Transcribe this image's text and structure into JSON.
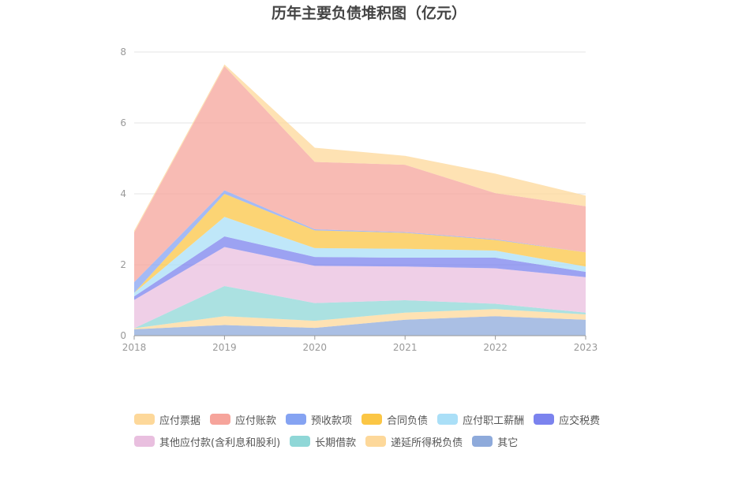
{
  "title": "历年主要负债堆积图（亿元）",
  "chart_data": {
    "type": "area",
    "stacked": true,
    "title": "历年主要负债堆积图（亿元）",
    "x": [
      "2018",
      "2019",
      "2020",
      "2021",
      "2022",
      "2023"
    ],
    "ylim": [
      0,
      8
    ],
    "yticks": [
      "0",
      "2",
      "4",
      "6",
      "8"
    ],
    "grid": true,
    "legend_position": "bottom",
    "series": [
      {
        "name": "其它",
        "color": "#8eaadb",
        "values": [
          0.18,
          0.3,
          0.22,
          0.45,
          0.55,
          0.45
        ]
      },
      {
        "name": "递延所得税负债",
        "color": "#fdd89a",
        "values": [
          0.03,
          0.25,
          0.2,
          0.2,
          0.2,
          0.15
        ]
      },
      {
        "name": "长期借款",
        "color": "#8fd7d7",
        "values": [
          0.0,
          0.85,
          0.5,
          0.35,
          0.15,
          0.05
        ]
      },
      {
        "name": "其他应付款(含利息和股利)",
        "color": "#e9bfdf",
        "values": [
          0.8,
          1.1,
          1.05,
          0.95,
          1.0,
          1.0
        ]
      },
      {
        "name": "应交税费",
        "color": "#7b83ee",
        "values": [
          0.1,
          0.3,
          0.25,
          0.25,
          0.3,
          0.15
        ]
      },
      {
        "name": "应付职工薪酬",
        "color": "#aadff7",
        "values": [
          0.1,
          0.55,
          0.25,
          0.25,
          0.2,
          0.15
        ]
      },
      {
        "name": "合同负债",
        "color": "#fbc645",
        "values": [
          0.0,
          0.65,
          0.5,
          0.45,
          0.3,
          0.4
        ]
      },
      {
        "name": "预收款项",
        "color": "#85a3f2",
        "values": [
          0.3,
          0.1,
          0.03,
          0.02,
          0.02,
          0.0
        ]
      },
      {
        "name": "应付账款",
        "color": "#f6a49b",
        "values": [
          1.4,
          3.5,
          1.9,
          1.9,
          1.3,
          1.3
        ]
      },
      {
        "name": "应付票据",
        "color": "#fdd89a",
        "values": [
          0.05,
          0.05,
          0.4,
          0.25,
          0.55,
          0.3
        ]
      }
    ]
  },
  "legend": {
    "rows": [
      [
        {
          "label": "应付票据",
          "color": "#fdd89a"
        },
        {
          "label": "应付账款",
          "color": "#f6a49b"
        },
        {
          "label": "预收款项",
          "color": "#85a3f2"
        },
        {
          "label": "合同负债",
          "color": "#fbc645"
        },
        {
          "label": "应付职工薪酬",
          "color": "#aadff7"
        },
        {
          "label": "应交税费",
          "color": "#7b83ee"
        }
      ],
      [
        {
          "label": "其他应付款(含利息和股利)",
          "color": "#e9bfdf"
        },
        {
          "label": "长期借款",
          "color": "#8fd7d7"
        },
        {
          "label": "递延所得税负债",
          "color": "#fdd89a"
        },
        {
          "label": "其它",
          "color": "#8eaadb"
        }
      ]
    ]
  }
}
